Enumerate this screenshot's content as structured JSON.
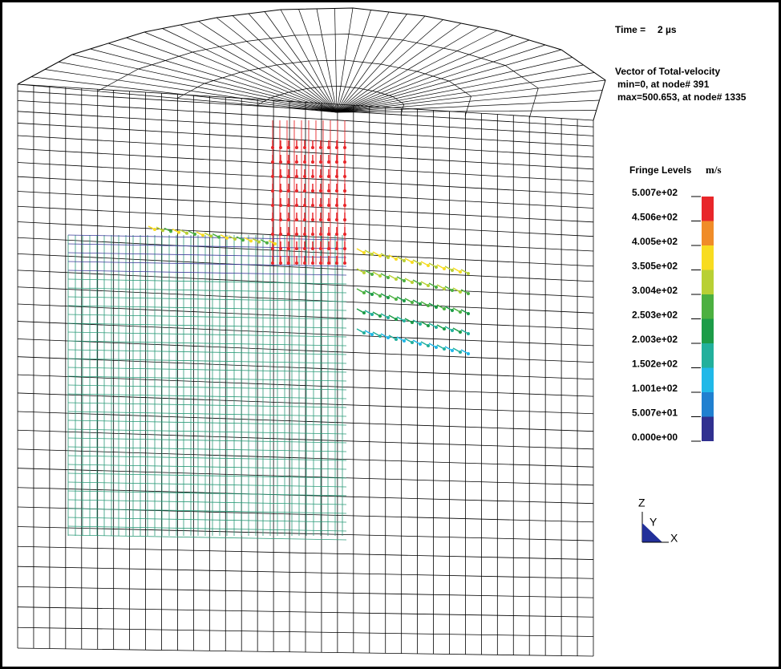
{
  "header": {
    "time_label": "Time =",
    "time_value": "2 µs",
    "title": "Vector of Total-velocity",
    "min_line": "min=0, at node# 391",
    "max_line": "max=500.653, at node# 1335"
  },
  "legend": {
    "title": "Fringe Levels",
    "unit": "m/s",
    "levels": [
      "5.007e+02",
      "4.506e+02",
      "4.005e+02",
      "3.505e+02",
      "3.004e+02",
      "2.503e+02",
      "2.003e+02",
      "1.502e+02",
      "1.001e+02",
      "5.007e+01",
      "0.000e+00"
    ],
    "colors": [
      "#e8262a",
      "#f08c28",
      "#f8dc20",
      "#b8d034",
      "#4cb040",
      "#1c9c48",
      "#22b09c",
      "#20b8e8",
      "#2080d0",
      "#303090"
    ]
  },
  "triad": {
    "z": "Z",
    "y": "Y",
    "x": "X"
  }
}
